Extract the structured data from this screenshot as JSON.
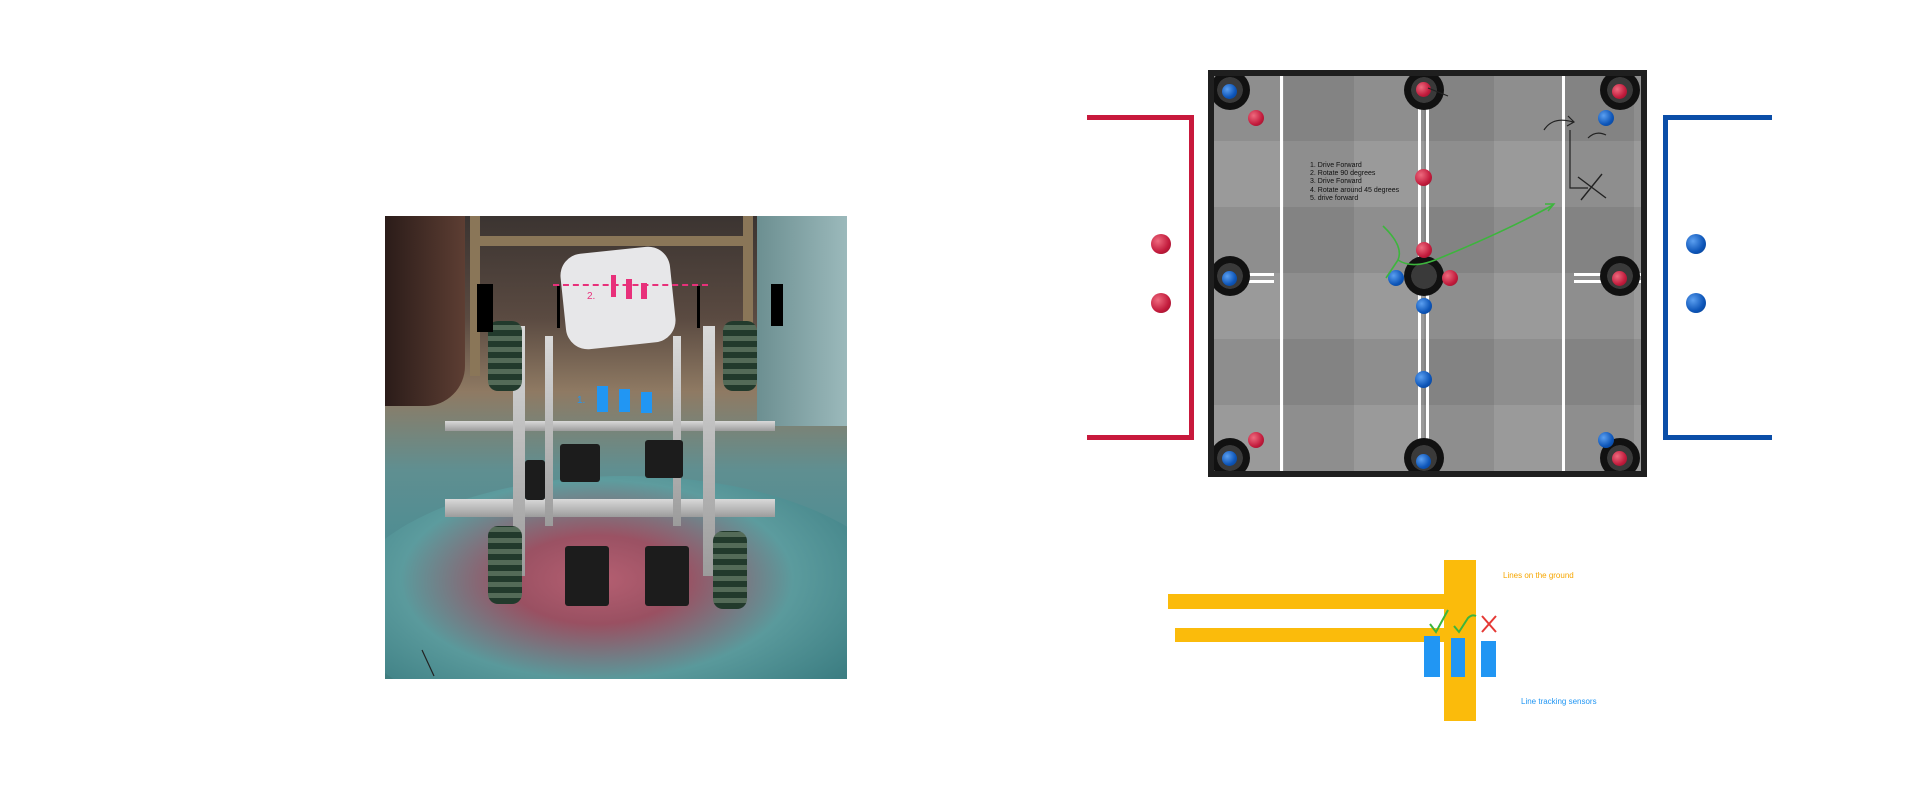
{
  "colors": {
    "pink": "#e8307a",
    "sensor_blue": "#2196f3",
    "red_alliance": "#c8193c",
    "blue_alliance": "#0b4ea8",
    "line_yellow": "#fbbb0b",
    "check_green": "#3db53d",
    "cross_red": "#e53935"
  },
  "robot_photo": {
    "label_1": "1.",
    "label_2": "2."
  },
  "field": {
    "steps": [
      "1. Drive Forward",
      "2. Rotate 90 degrees",
      "3. Drive Forward",
      "4. Rotate around 45 degrees",
      "5. drive forward"
    ]
  },
  "line_diagram": {
    "ground_lines_label": "Lines on the ground",
    "sensors_label": "Line tracking sensors",
    "sensor_status": [
      "check",
      "check",
      "cross"
    ]
  }
}
